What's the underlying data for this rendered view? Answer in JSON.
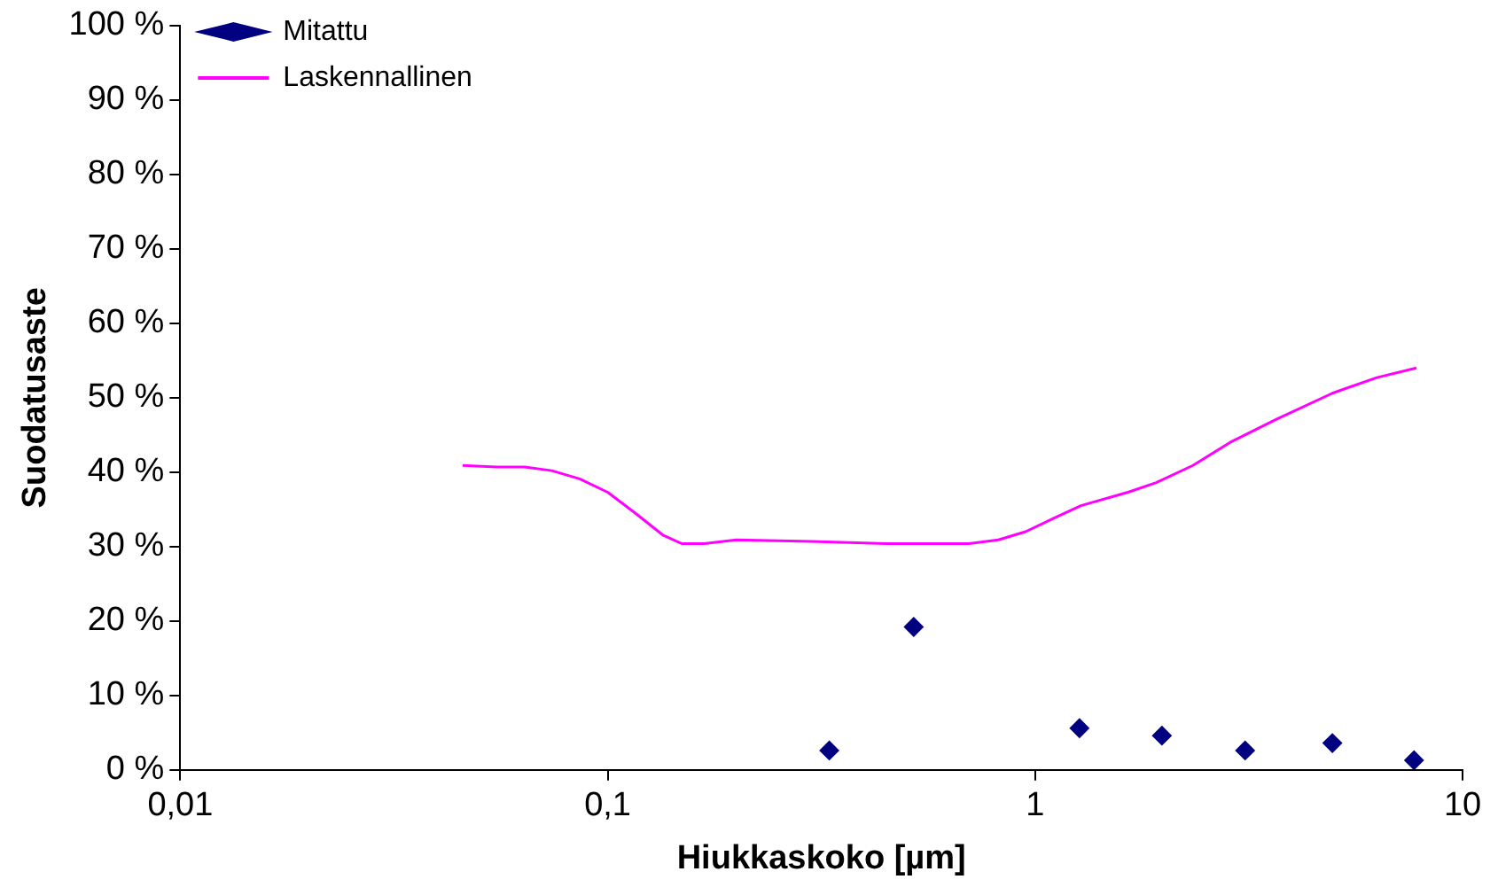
{
  "chart_data": {
    "type": "scatter",
    "xlabel": "Hiukkaskoko [µm]",
    "ylabel": "Suodatusaste",
    "log": "x",
    "xlim": [
      0.01,
      10
    ],
    "xticks": [
      {
        "value": 0.01,
        "label": "0,01"
      },
      {
        "value": 0.1,
        "label": "0,1"
      },
      1,
      10
    ],
    "ylim": [
      0,
      100
    ],
    "yticks": [
      {
        "value": 0,
        "label": "0 %"
      },
      {
        "value": 10,
        "label": "10 %"
      },
      {
        "value": 20,
        "label": "20 %"
      },
      {
        "value": 30,
        "label": "30 %"
      },
      {
        "value": 40,
        "label": "40 %"
      },
      {
        "value": 50,
        "label": "50 %"
      },
      {
        "value": 60,
        "label": "60 %"
      },
      {
        "value": 70,
        "label": "70 %"
      },
      {
        "value": 80,
        "label": "80 %"
      },
      {
        "value": 90,
        "label": "90 %"
      },
      {
        "value": 100,
        "label": "100 %"
      }
    ],
    "grid": false,
    "legend": "top left",
    "series": [
      {
        "name": "Mitattu",
        "type": "scatter",
        "marker": "diamond",
        "color": "#000080",
        "x": [
          0.33,
          0.52,
          1.27,
          1.98,
          3.1,
          4.96,
          7.7
        ],
        "values": [
          2.6,
          19.2,
          5.6,
          4.6,
          2.6,
          3.6,
          1.3
        ]
      },
      {
        "name": "Laskennallinen",
        "type": "line",
        "marker": "none",
        "line_style": "solid",
        "color": "#ff00ff",
        "x": [
          0.0458,
          0.055,
          0.064,
          0.074,
          0.086,
          0.1,
          0.116,
          0.135,
          0.149,
          0.168,
          0.2,
          0.3,
          0.45,
          0.7,
          0.82,
          0.95,
          1.105,
          1.28,
          1.65,
          1.92,
          2.34,
          2.86,
          3.67,
          4.96,
          6.3,
          7.8
        ],
        "values": [
          40.9,
          40.7,
          40.7,
          40.2,
          39.1,
          37.3,
          34.5,
          31.5,
          30.4,
          30.4,
          30.9,
          30.7,
          30.4,
          30.4,
          30.9,
          32.0,
          33.8,
          35.5,
          37.3,
          38.6,
          40.9,
          44.0,
          47.1,
          50.6,
          52.7,
          54.0
        ]
      }
    ]
  }
}
